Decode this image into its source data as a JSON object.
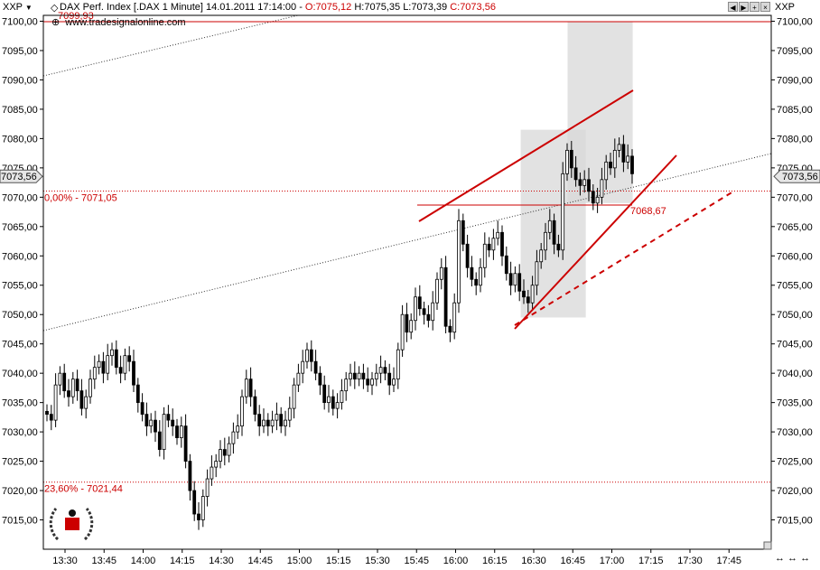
{
  "header": {
    "left_symbol": "XXP",
    "right_symbol": "XXP",
    "instrument": "DAX Perf. Index [.DAX  1 Minute] 14.01.2011 17:14:00",
    "open": "O:7075,12",
    "high": "H:7075,35",
    "low": "L:7073,39",
    "close": "C:7073,56",
    "source": "www.tradesignalonline.com"
  },
  "colors": {
    "accent_red": "#cc0000",
    "candle": "#000000",
    "shade": "#d8d8d8"
  },
  "chart_data": {
    "type": "candlestick",
    "title": "DAX Perf. Index [.DAX  1 Minute] 14.01.2011 17:14:00",
    "ylim": [
      7010,
      7101
    ],
    "y_ticks": [
      7015,
      7020,
      7025,
      7030,
      7035,
      7040,
      7045,
      7050,
      7055,
      7060,
      7065,
      7070,
      7075,
      7080,
      7085,
      7090,
      7095,
      7100
    ],
    "y_tick_labels": [
      "7015,00",
      "7020,00",
      "7025,00",
      "7030,00",
      "7035,00",
      "7040,00",
      "7045,00",
      "7050,00",
      "7055,00",
      "7060,00",
      "7065,00",
      "7070,00",
      "7075,00",
      "7080,00",
      "7085,00",
      "7090,00",
      "7095,00",
      "7100,00"
    ],
    "x_ticks": [
      "13:30",
      "13:45",
      "14:00",
      "14:15",
      "14:30",
      "14:45",
      "15:00",
      "15:15",
      "15:30",
      "15:45",
      "16:00",
      "16:15",
      "16:30",
      "16:45",
      "17:00",
      "17:15",
      "17:30",
      "17:45"
    ],
    "last_price_label": "7073,56",
    "last_price": 7073.56,
    "levels": [
      {
        "label": "7099,93",
        "value": 7099.93
      },
      {
        "label": "0,00% - 7071,05",
        "value": 7071.05
      },
      {
        "label": "23,60% - 7021,44",
        "value": 7021.44
      },
      {
        "label": "7068,67",
        "value": 7068.67
      }
    ],
    "closes": [
      7033,
      7032,
      7038,
      7040,
      7037,
      7036,
      7039,
      7037,
      7034,
      7036,
      7039,
      7041,
      7042,
      7040,
      7043,
      7044,
      7041,
      7040,
      7043,
      7042,
      7038,
      7035,
      7033,
      7031,
      7032,
      7030,
      7027,
      7033,
      7032,
      7031,
      7029,
      7031,
      7025,
      7020,
      7016,
      7015,
      7019,
      7022,
      7024,
      7025,
      7027,
      7026,
      7028,
      7030,
      7031,
      7036,
      7039,
      7036,
      7033,
      7031,
      7032,
      7031,
      7032,
      7033,
      7031,
      7032,
      7034,
      7038,
      7040,
      7042,
      7044,
      7042,
      7040,
      7038,
      7035,
      7036,
      7034,
      7035,
      7037,
      7039,
      7040,
      7039,
      7040,
      7039,
      7038,
      7039,
      7040,
      7041,
      7040,
      7038,
      7039,
      7044,
      7050,
      7047,
      7049,
      7053,
      7051,
      7050,
      7049,
      7052,
      7056,
      7058,
      7048,
      7047,
      7052,
      7066,
      7062,
      7058,
      7056,
      7055,
      7058,
      7062,
      7061,
      7063,
      7064,
      7060,
      7057,
      7055,
      7057,
      7054,
      7053,
      7052,
      7055,
      7059,
      7061,
      7064,
      7066,
      7062,
      7061,
      7074,
      7078,
      7075,
      7073,
      7072,
      7073,
      7071,
      7069,
      7070,
      7073,
      7076,
      7075,
      7078,
      7079,
      7076,
      7077,
      7074
    ],
    "shaded_regions": [
      {
        "x_from": "16:25",
        "x_to": "16:50",
        "y_from": 7049.5,
        "y_to": 7081.5
      },
      {
        "x_from": "16:43",
        "x_to": "17:08",
        "y_from": 7069,
        "y_to": 7100
      }
    ]
  }
}
